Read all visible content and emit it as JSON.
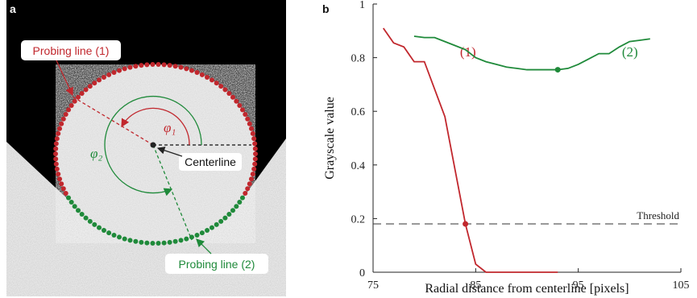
{
  "panel_a": {
    "label": "a",
    "probing_line_1": "Probing line (1)",
    "probing_line_2": "Probing line (2)",
    "centerline": "Centerline",
    "phi_1": "φ₁",
    "phi_2": "φ₂"
  },
  "chart_data": {
    "type": "line",
    "panel_label": "b",
    "x_label": "Radial distance from centerline [pixels]",
    "y_label": "Grayscale value",
    "xlim": [
      75,
      105
    ],
    "xticks": [
      75,
      85,
      95,
      105
    ],
    "ylim": [
      0,
      1
    ],
    "yticks": [
      0,
      0.2,
      0.4,
      0.6,
      0.8,
      1
    ],
    "threshold": 0.18,
    "threshold_label": "Threshold",
    "series": [
      {
        "name": "(1)",
        "color": "#c1272d",
        "marker_x": 84,
        "x": [
          76,
          77,
          78,
          79,
          80,
          82,
          83,
          84,
          85,
          86,
          87,
          88,
          89,
          90,
          91,
          92,
          93
        ],
        "values": [
          0.91,
          0.855,
          0.84,
          0.785,
          0.785,
          0.58,
          0.38,
          0.18,
          0.03,
          0,
          0,
          0,
          0,
          0,
          0,
          0,
          0
        ]
      },
      {
        "name": "(2)",
        "color": "#1f8a3a",
        "marker_x": 93,
        "x": [
          79,
          80,
          81,
          82,
          83,
          84,
          85,
          86,
          87,
          88,
          89,
          90,
          91,
          92,
          93,
          94,
          95,
          96,
          97,
          98,
          99,
          100,
          101,
          102
        ],
        "values": [
          0.88,
          0.875,
          0.875,
          0.86,
          0.845,
          0.83,
          0.8,
          0.785,
          0.775,
          0.765,
          0.76,
          0.755,
          0.755,
          0.755,
          0.755,
          0.76,
          0.775,
          0.795,
          0.815,
          0.815,
          0.84,
          0.86,
          0.865,
          0.87
        ]
      }
    ]
  }
}
